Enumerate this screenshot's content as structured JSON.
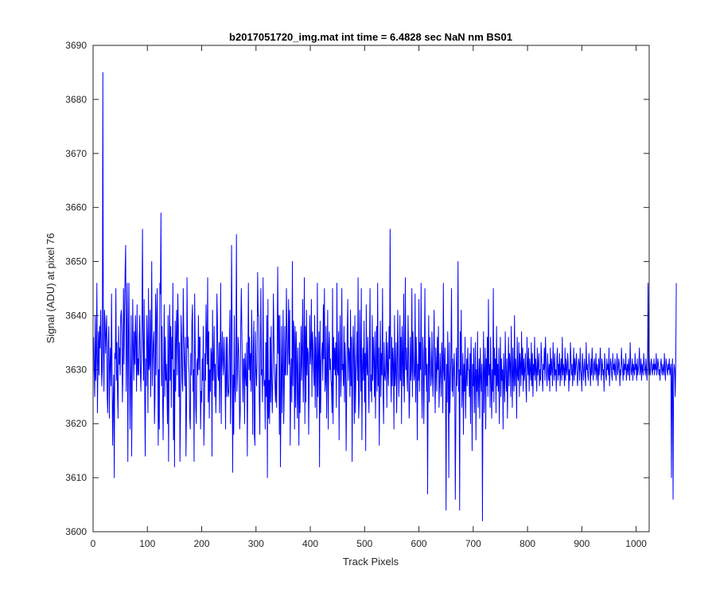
{
  "chart_data": {
    "type": "line",
    "title": "b2017051720_img.mat int time = 6.4828 sec  NaN nm BS01",
    "xlabel": "Track Pixels",
    "ylabel": "Signal (ADU) at pixel 76",
    "xlim": [
      0,
      1024
    ],
    "ylim": [
      3600,
      3690
    ],
    "xticks": [
      0,
      100,
      200,
      300,
      400,
      500,
      600,
      700,
      800,
      900,
      1000
    ],
    "yticks": [
      3600,
      3610,
      3620,
      3630,
      3640,
      3650,
      3660,
      3670,
      3680,
      3690
    ],
    "grid": false,
    "legend": false,
    "line_color": "#0000ff",
    "series": [
      {
        "x_start": 1,
        "x_step": 1,
        "values": [
          3636,
          3630,
          3625,
          3640,
          3628,
          3633,
          3646,
          3622,
          3631,
          3637,
          3629,
          3638,
          3634,
          3641,
          3635,
          3627,
          3630,
          3685,
          3634,
          3626,
          3641,
          3639,
          3633,
          3637,
          3640,
          3625,
          3622,
          3635,
          3638,
          3621,
          3631,
          3634,
          3627,
          3644,
          3630,
          3616,
          3624,
          3629,
          3610,
          3633,
          3632,
          3645,
          3628,
          3635,
          3626,
          3621,
          3638,
          3631,
          3634,
          3629,
          3640,
          3641,
          3637,
          3624,
          3630,
          3645,
          3631,
          3641,
          3648,
          3653,
          3626,
          3637,
          3646,
          3613,
          3634,
          3646,
          3631,
          3619,
          3629,
          3640,
          3614,
          3627,
          3643,
          3634,
          3628,
          3637,
          3631,
          3640,
          3635,
          3626,
          3642,
          3629,
          3632,
          3629,
          3636,
          3640,
          3630,
          3626,
          3633,
          3639,
          3656,
          3634,
          3628,
          3643,
          3626,
          3614,
          3632,
          3627,
          3640,
          3635,
          3622,
          3645,
          3630,
          3631,
          3641,
          3625,
          3636,
          3650,
          3627,
          3632,
          3635,
          3637,
          3620,
          3625,
          3644,
          3629,
          3640,
          3645,
          3634,
          3616,
          3630,
          3619,
          3646,
          3644,
          3659,
          3627,
          3638,
          3625,
          3617,
          3630,
          3642,
          3625,
          3636,
          3628,
          3631,
          3626,
          3620,
          3640,
          3613,
          3634,
          3642,
          3628,
          3638,
          3623,
          3636,
          3632,
          3646,
          3617,
          3630,
          3612,
          3639,
          3626,
          3636,
          3641,
          3629,
          3644,
          3638,
          3625,
          3635,
          3613,
          3622,
          3640,
          3636,
          3628,
          3626,
          3645,
          3636,
          3631,
          3627,
          3636,
          3614,
          3622,
          3647,
          3634,
          3636,
          3631,
          3629,
          3621,
          3619,
          3633,
          3629,
          3639,
          3642,
          3626,
          3630,
          3613,
          3644,
          3635,
          3623,
          3620,
          3631,
          3632,
          3629,
          3640,
          3630,
          3636,
          3636,
          3619,
          3626,
          3624,
          3632,
          3628,
          3638,
          3616,
          3622,
          3633,
          3628,
          3642,
          3635,
          3631,
          3647,
          3624,
          3637,
          3621,
          3630,
          3626,
          3634,
          3633,
          3614,
          3641,
          3628,
          3631,
          3638,
          3625,
          3631,
          3622,
          3627,
          3644,
          3639,
          3629,
          3628,
          3635,
          3622,
          3631,
          3646,
          3620,
          3632,
          3637,
          3631,
          3629,
          3636,
          3632,
          3629,
          3619,
          3636,
          3625,
          3636,
          3627,
          3625,
          3626,
          3635,
          3641,
          3620,
          3628,
          3653,
          3637,
          3611,
          3629,
          3618,
          3640,
          3627,
          3624,
          3633,
          3655,
          3626,
          3629,
          3636,
          3634,
          3628,
          3619,
          3622,
          3638,
          3645,
          3637,
          3630,
          3624,
          3632,
          3632,
          3620,
          3633,
          3629,
          3627,
          3635,
          3614,
          3630,
          3646,
          3630,
          3636,
          3628,
          3633,
          3626,
          3641,
          3632,
          3618,
          3634,
          3639,
          3618,
          3616,
          3637,
          3630,
          3627,
          3631,
          3648,
          3640,
          3640,
          3625,
          3618,
          3633,
          3645,
          3629,
          3630,
          3624,
          3647,
          3630,
          3627,
          3628,
          3619,
          3635,
          3625,
          3640,
          3610,
          3643,
          3621,
          3628,
          3620,
          3636,
          3624,
          3638,
          3628,
          3622,
          3629,
          3644,
          3636,
          3630,
          3627,
          3624,
          3631,
          3623,
          3634,
          3649,
          3633,
          3640,
          3618,
          3640,
          3612,
          3625,
          3638,
          3622,
          3630,
          3641,
          3620,
          3626,
          3638,
          3629,
          3629,
          3645,
          3637,
          3629,
          3634,
          3643,
          3631,
          3641,
          3616,
          3627,
          3632,
          3624,
          3650,
          3627,
          3639,
          3636,
          3619,
          3638,
          3623,
          3637,
          3631,
          3621,
          3634,
          3625,
          3616,
          3635,
          3622,
          3630,
          3638,
          3628,
          3634,
          3643,
          3624,
          3631,
          3647,
          3620,
          3638,
          3624,
          3641,
          3629,
          3634,
          3633,
          3618,
          3628,
          3640,
          3631,
          3634,
          3643,
          3625,
          3637,
          3634,
          3630,
          3627,
          3640,
          3623,
          3636,
          3631,
          3621,
          3646,
          3625,
          3632,
          3637,
          3612,
          3639,
          3622,
          3631,
          3633,
          3635,
          3628,
          3642,
          3632,
          3645,
          3626,
          3628,
          3638,
          3621,
          3630,
          3641,
          3619,
          3634,
          3637,
          3630,
          3632,
          3628,
          3627,
          3622,
          3645,
          3620,
          3636,
          3630,
          3634,
          3629,
          3635,
          3623,
          3646,
          3630,
          3629,
          3637,
          3617,
          3633,
          3640,
          3625,
          3628,
          3645,
          3630,
          3631,
          3627,
          3638,
          3624,
          3635,
          3631,
          3615,
          3626,
          3637,
          3643,
          3628,
          3634,
          3633,
          3625,
          3641,
          3627,
          3636,
          3613,
          3630,
          3638,
          3632,
          3620,
          3640,
          3622,
          3629,
          3632,
          3637,
          3628,
          3647,
          3621,
          3624,
          3641,
          3632,
          3626,
          3645,
          3617,
          3630,
          3634,
          3628,
          3639,
          3624,
          3633,
          3615,
          3642,
          3631,
          3629,
          3636,
          3627,
          3622,
          3634,
          3645,
          3626,
          3629,
          3624,
          3640,
          3628,
          3636,
          3632,
          3625,
          3637,
          3621,
          3631,
          3638,
          3626,
          3646,
          3627,
          3634,
          3616,
          3630,
          3639,
          3625,
          3633,
          3629,
          3645,
          3626,
          3620,
          3635,
          3629,
          3628,
          3631,
          3637,
          3623,
          3635,
          3630,
          3627,
          3638,
          3632,
          3656,
          3629,
          3624,
          3636,
          3627,
          3634,
          3631,
          3619,
          3640,
          3627,
          3630,
          3635,
          3622,
          3629,
          3641,
          3633,
          3625,
          3629,
          3640,
          3628,
          3636,
          3620,
          3638,
          3632,
          3627,
          3644,
          3624,
          3631,
          3647,
          3630,
          3634,
          3629,
          3626,
          3640,
          3633,
          3621,
          3625,
          3636,
          3628,
          3630,
          3645,
          3625,
          3637,
          3632,
          3628,
          3629,
          3644,
          3624,
          3636,
          3631,
          3617,
          3631,
          3628,
          3643,
          3626,
          3635,
          3630,
          3646,
          3627,
          3621,
          3636,
          3633,
          3620,
          3630,
          3645,
          3629,
          3634,
          3626,
          3631,
          3607,
          3628,
          3640,
          3624,
          3636,
          3632,
          3627,
          3629,
          3637,
          3629,
          3625,
          3633,
          3641,
          3628,
          3622,
          3634,
          3631,
          3626,
          3636,
          3630,
          3638,
          3623,
          3627,
          3633,
          3629,
          3625,
          3635,
          3632,
          3622,
          3646,
          3630,
          3628,
          3634,
          3627,
          3604,
          3631,
          3624,
          3637,
          3629,
          3610,
          3635,
          3622,
          3628,
          3633,
          3645,
          3626,
          3632,
          3625,
          3630,
          3633,
          3628,
          3606,
          3621,
          3634,
          3627,
          3631,
          3650,
          3626,
          3630,
          3604,
          3637,
          3629,
          3641,
          3623,
          3627,
          3633,
          3618,
          3631,
          3626,
          3636,
          3621,
          3628,
          3632,
          3627,
          3634,
          3630,
          3630,
          3625,
          3633,
          3620,
          3636,
          3629,
          3615,
          3631,
          3627,
          3634,
          3622,
          3629,
          3635,
          3617,
          3630,
          3626,
          3637,
          3623,
          3628,
          3632,
          3621,
          3634,
          3629,
          3626,
          3631,
          3602,
          3628,
          3637,
          3622,
          3630,
          3634,
          3619,
          3632,
          3627,
          3636,
          3625,
          3643,
          3629,
          3631,
          3623,
          3636,
          3628,
          3621,
          3630,
          3626,
          3645,
          3624,
          3634,
          3629,
          3632,
          3622,
          3638,
          3627,
          3631,
          3626,
          3634,
          3620,
          3629,
          3636,
          3625,
          3632,
          3628,
          3630,
          3619,
          3633,
          3628,
          3624,
          3637,
          3630,
          3626,
          3632,
          3621,
          3629,
          3636,
          3627,
          3633,
          3631,
          3625,
          3638,
          3630,
          3623,
          3634,
          3629,
          3626,
          3640,
          3627,
          3632,
          3630,
          3621,
          3636,
          3629,
          3628,
          3635,
          3625,
          3633,
          3631,
          3627,
          3637,
          3629,
          3634,
          3626,
          3632,
          3628,
          3630,
          3633,
          3627,
          3624,
          3636,
          3631,
          3629,
          3634,
          3626,
          3632,
          3630,
          3628,
          3635,
          3627,
          3633,
          3625,
          3631,
          3629,
          3636,
          3628,
          3632,
          3630,
          3626,
          3634,
          3629,
          3631,
          3633,
          3627,
          3630,
          3628,
          3635,
          3632,
          3629,
          3626,
          3631,
          3630,
          3634,
          3628,
          3636,
          3632,
          3629,
          3627,
          3633,
          3630,
          3628,
          3631,
          3626,
          3634,
          3629,
          3632,
          3630,
          3627,
          3635,
          3631,
          3628,
          3633,
          3629,
          3630,
          3626,
          3632,
          3634,
          3628,
          3631,
          3629,
          3633,
          3627,
          3630,
          3632,
          3628,
          3636,
          3629,
          3631,
          3630,
          3627,
          3634,
          3628,
          3632,
          3630,
          3629,
          3633,
          3631,
          3626,
          3630,
          3628,
          3635,
          3632,
          3629,
          3631,
          3627,
          3630,
          3634,
          3628,
          3632,
          3629,
          3631,
          3633,
          3630,
          3627,
          3629,
          3632,
          3631,
          3628,
          3634,
          3630,
          3629,
          3626,
          3633,
          3631,
          3628,
          3630,
          3632,
          3629,
          3627,
          3635,
          3630,
          3631,
          3629,
          3628,
          3633,
          3631,
          3630,
          3627,
          3632,
          3629,
          3634,
          3630,
          3628,
          3631,
          3632,
          3629,
          3630,
          3633,
          3628,
          3631,
          3630,
          3627,
          3632,
          3629,
          3631,
          3634,
          3630,
          3628,
          3632,
          3631,
          3629,
          3630,
          3626,
          3633,
          3631,
          3629,
          3628,
          3632,
          3630,
          3631,
          3629,
          3634,
          3627,
          3630,
          3632,
          3631,
          3629,
          3628,
          3633,
          3630,
          3631,
          3629,
          3632,
          3630,
          3628,
          3631,
          3633,
          3629,
          3630,
          3632,
          3631,
          3627,
          3630,
          3629,
          3634,
          3631,
          3630,
          3628,
          3632,
          3629,
          3631,
          3630,
          3633,
          3628,
          3630,
          3631,
          3629,
          3632,
          3630,
          3628,
          3635,
          3631,
          3629,
          3630,
          3632,
          3628,
          3631,
          3630,
          3629,
          3633,
          3630,
          3631,
          3628,
          3632,
          3629,
          3630,
          3631,
          3634,
          3629,
          3630,
          3632,
          3628,
          3631,
          3630,
          3629,
          3633,
          3631,
          3630,
          3629,
          3632,
          3630,
          3628,
          3631,
          3646,
          3629,
          3633,
          3630,
          3629,
          3631,
          3632,
          3630,
          3629,
          3631,
          3630,
          3632,
          3629,
          3631,
          3630,
          3633,
          3629,
          3630,
          3632,
          3631,
          3629,
          3630,
          3628,
          3631,
          3632,
          3630,
          3629,
          3631,
          3630,
          3629,
          3633,
          3630,
          3628,
          3632,
          3631,
          3630,
          3629,
          3631,
          3630,
          3632,
          3629,
          3630,
          3631,
          3610,
          3630,
          3632,
          3606,
          3629,
          3631,
          3630,
          3625,
          3632,
          3646
        ]
      }
    ]
  }
}
